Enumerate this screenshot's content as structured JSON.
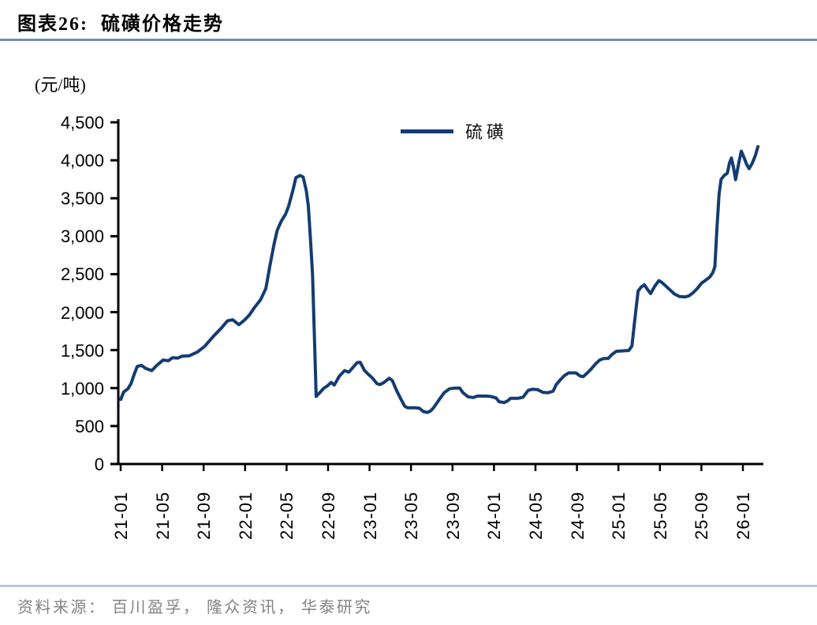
{
  "header": {
    "title": "图表26:  硫磺价格走势"
  },
  "footer": {
    "source": "资料来源： 百川盈孚， 隆众资讯， 华泰研究"
  },
  "colors": {
    "line": "#143c72",
    "axis": "#000000",
    "title_rule": "#6f8cb3",
    "footer_rule": "#bac7d9",
    "footer_text": "#838383"
  },
  "chart_data": {
    "type": "line",
    "title": "硫磺价格走势",
    "unit_label": "(元/吨)",
    "legend_position": "top-center",
    "grid": false,
    "ylim": [
      0,
      4500
    ],
    "ytick_step": 500,
    "yticks": [
      {
        "v": 0,
        "label": "0"
      },
      {
        "v": 500,
        "label": "500"
      },
      {
        "v": 1000,
        "label": "1,000"
      },
      {
        "v": 1500,
        "label": "1,500"
      },
      {
        "v": 2000,
        "label": "2,000"
      },
      {
        "v": 2500,
        "label": "2,500"
      },
      {
        "v": 3000,
        "label": "3,000"
      },
      {
        "v": 3500,
        "label": "3,500"
      },
      {
        "v": 4000,
        "label": "4,000"
      },
      {
        "v": 4500,
        "label": "4,500"
      }
    ],
    "x_months_per_tick": 4,
    "xticklabels": [
      "21-01",
      "21-05",
      "21-09",
      "22-01",
      "22-05",
      "22-09",
      "23-01",
      "23-05",
      "23-09",
      "24-01",
      "24-05",
      "24-09",
      "25-01",
      "25-05",
      "25-09",
      "26-01"
    ],
    "legend": [
      {
        "label": "硫磺"
      }
    ],
    "series": [
      {
        "name": "硫磺",
        "color": "#143c72",
        "x_unit": "months_since_2021-01",
        "y_unit": "元/吨",
        "points": [
          [
            0,
            850
          ],
          [
            0.3,
            950
          ],
          [
            0.7,
            990
          ],
          [
            1,
            1060
          ],
          [
            1.3,
            1180
          ],
          [
            1.6,
            1285
          ],
          [
            2,
            1300
          ],
          [
            2.4,
            1260
          ],
          [
            3,
            1230
          ],
          [
            3.5,
            1300
          ],
          [
            4.1,
            1370
          ],
          [
            4.6,
            1360
          ],
          [
            5,
            1400
          ],
          [
            5.5,
            1395
          ],
          [
            5.9,
            1420
          ],
          [
            6.6,
            1425
          ],
          [
            7.4,
            1475
          ],
          [
            8.1,
            1550
          ],
          [
            8.9,
            1675
          ],
          [
            9.7,
            1790
          ],
          [
            10.3,
            1885
          ],
          [
            10.8,
            1900
          ],
          [
            11.4,
            1835
          ],
          [
            11.9,
            1890
          ],
          [
            12.4,
            1960
          ],
          [
            12.9,
            2060
          ],
          [
            13.5,
            2165
          ],
          [
            14,
            2310
          ],
          [
            14.4,
            2620
          ],
          [
            14.8,
            2900
          ],
          [
            15.1,
            3080
          ],
          [
            15.5,
            3200
          ],
          [
            15.9,
            3290
          ],
          [
            16.2,
            3395
          ],
          [
            16.6,
            3600
          ],
          [
            16.9,
            3770
          ],
          [
            17.3,
            3800
          ],
          [
            17.6,
            3780
          ],
          [
            17.9,
            3600
          ],
          [
            18.1,
            3395
          ],
          [
            18.3,
            2975
          ],
          [
            18.5,
            2500
          ],
          [
            18.7,
            1600
          ],
          [
            18.85,
            890
          ],
          [
            19.2,
            940
          ],
          [
            19.6,
            1000
          ],
          [
            19.9,
            1025
          ],
          [
            20.3,
            1075
          ],
          [
            20.6,
            1040
          ],
          [
            21.1,
            1160
          ],
          [
            21.6,
            1230
          ],
          [
            22,
            1210
          ],
          [
            22.3,
            1255
          ],
          [
            22.8,
            1335
          ],
          [
            23.1,
            1340
          ],
          [
            23.5,
            1235
          ],
          [
            23.9,
            1180
          ],
          [
            24.3,
            1130
          ],
          [
            24.7,
            1060
          ],
          [
            25,
            1045
          ],
          [
            25.4,
            1075
          ],
          [
            25.9,
            1130
          ],
          [
            26.2,
            1100
          ],
          [
            26.6,
            970
          ],
          [
            27,
            860
          ],
          [
            27.4,
            760
          ],
          [
            27.7,
            740
          ],
          [
            28.4,
            740
          ],
          [
            28.8,
            735
          ],
          [
            29.2,
            690
          ],
          [
            29.6,
            680
          ],
          [
            29.9,
            700
          ],
          [
            30.2,
            745
          ],
          [
            30.7,
            845
          ],
          [
            31.2,
            940
          ],
          [
            31.7,
            990
          ],
          [
            32.2,
            1000
          ],
          [
            32.7,
            1000
          ],
          [
            33,
            940
          ],
          [
            33.5,
            885
          ],
          [
            34,
            875
          ],
          [
            34.4,
            895
          ],
          [
            35.2,
            895
          ],
          [
            35.7,
            890
          ],
          [
            36.2,
            870
          ],
          [
            36.5,
            820
          ],
          [
            37,
            810
          ],
          [
            37.3,
            830
          ],
          [
            37.6,
            865
          ],
          [
            38.3,
            865
          ],
          [
            38.8,
            880
          ],
          [
            39.3,
            970
          ],
          [
            39.7,
            985
          ],
          [
            40.2,
            980
          ],
          [
            40.7,
            945
          ],
          [
            41.2,
            938
          ],
          [
            41.7,
            960
          ],
          [
            42,
            1045
          ],
          [
            42.4,
            1110
          ],
          [
            42.8,
            1165
          ],
          [
            43.2,
            1200
          ],
          [
            43.9,
            1200
          ],
          [
            44.3,
            1160
          ],
          [
            44.6,
            1150
          ],
          [
            45,
            1200
          ],
          [
            45.4,
            1255
          ],
          [
            45.8,
            1320
          ],
          [
            46.2,
            1370
          ],
          [
            46.6,
            1390
          ],
          [
            47,
            1390
          ],
          [
            47.4,
            1445
          ],
          [
            47.8,
            1485
          ],
          [
            48.4,
            1490
          ],
          [
            49,
            1495
          ],
          [
            49.3,
            1555
          ],
          [
            49.5,
            1800
          ],
          [
            49.7,
            2050
          ],
          [
            49.9,
            2280
          ],
          [
            50.2,
            2330
          ],
          [
            50.5,
            2360
          ],
          [
            50.8,
            2300
          ],
          [
            51.1,
            2245
          ],
          [
            51.5,
            2340
          ],
          [
            51.9,
            2415
          ],
          [
            52.2,
            2390
          ],
          [
            52.6,
            2340
          ],
          [
            53,
            2290
          ],
          [
            53.4,
            2240
          ],
          [
            53.9,
            2205
          ],
          [
            54.4,
            2200
          ],
          [
            54.8,
            2215
          ],
          [
            55.2,
            2255
          ],
          [
            55.6,
            2310
          ],
          [
            56,
            2380
          ],
          [
            56.4,
            2420
          ],
          [
            56.8,
            2460
          ],
          [
            57.1,
            2520
          ],
          [
            57.3,
            2600
          ],
          [
            57.5,
            3100
          ],
          [
            57.7,
            3550
          ],
          [
            57.9,
            3750
          ],
          [
            58.2,
            3800
          ],
          [
            58.5,
            3830
          ],
          [
            58.7,
            3960
          ],
          [
            58.9,
            4030
          ],
          [
            59.1,
            3900
          ],
          [
            59.3,
            3745
          ],
          [
            59.6,
            3960
          ],
          [
            59.85,
            4120
          ],
          [
            60.1,
            4040
          ],
          [
            60.35,
            3950
          ],
          [
            60.6,
            3890
          ],
          [
            60.9,
            3960
          ],
          [
            61.2,
            4060
          ],
          [
            61.45,
            4180
          ]
        ]
      }
    ]
  }
}
